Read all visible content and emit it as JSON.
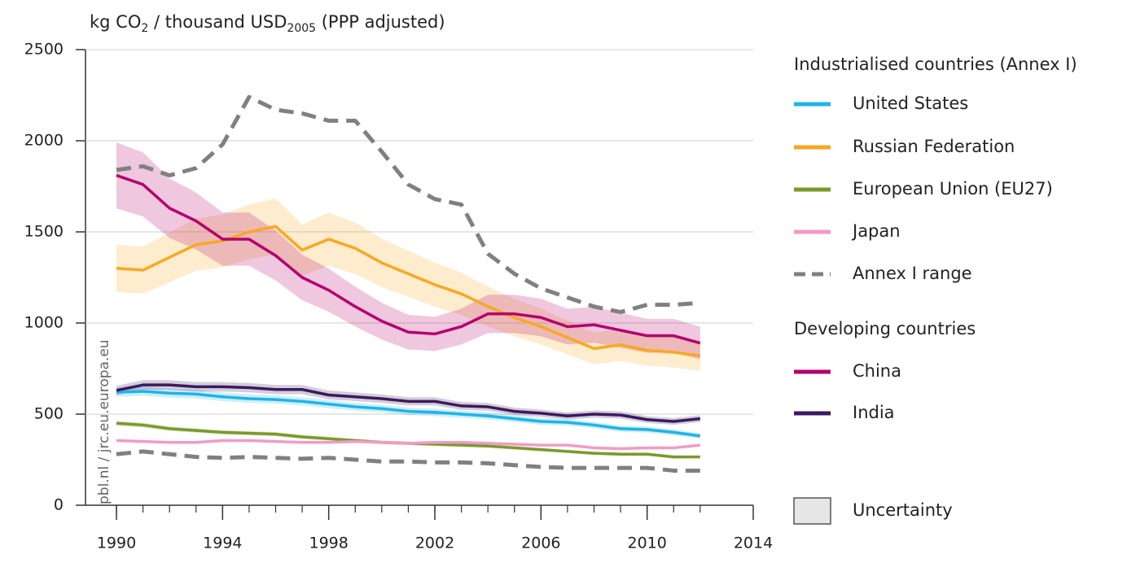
{
  "chart_data": {
    "type": "line",
    "y_label": [
      "kg CO",
      "2",
      " / thousand USD",
      "2005",
      " (PPP adjusted)"
    ],
    "watermark": "pbl.nl / jrc.eu.europa.eu",
    "x": [
      1990,
      1991,
      1992,
      1993,
      1994,
      1995,
      1996,
      1997,
      1998,
      1999,
      2000,
      2001,
      2002,
      2003,
      2004,
      2005,
      2006,
      2007,
      2008,
      2009,
      2010,
      2011,
      2012
    ],
    "xlim": [
      1990,
      2014
    ],
    "xticks": [
      1990,
      1994,
      1998,
      2002,
      2006,
      2010,
      2014
    ],
    "ylim": [
      0,
      2500
    ],
    "yticks": [
      0,
      500,
      1000,
      1500,
      2000,
      2500
    ],
    "grid": true,
    "uncertainty_label": "Uncertainty",
    "groups": [
      {
        "title": "Industrialised countries (Annex I)",
        "series": [
          {
            "name": "United States",
            "color": "#1eb4e8",
            "uncertainty": 4,
            "values": [
              620,
              625,
              615,
              610,
              595,
              585,
              580,
              570,
              555,
              540,
              530,
              515,
              510,
              500,
              490,
              475,
              460,
              455,
              440,
              420,
              415,
              400,
              380
            ]
          },
          {
            "name": "Russian Federation",
            "color": "#f8a822",
            "uncertainty": 10,
            "values": [
              1300,
              1290,
              1360,
              1430,
              1450,
              1500,
              1530,
              1400,
              1460,
              1410,
              1330,
              1270,
              1210,
              1160,
              1090,
              1030,
              980,
              920,
              860,
              880,
              850,
              840,
              820
            ]
          },
          {
            "name": "European Union (EU27)",
            "color": "#7a9a2a",
            "uncertainty": 3,
            "values": [
              450,
              440,
              420,
              410,
              400,
              395,
              390,
              375,
              365,
              355,
              345,
              340,
              335,
              330,
              325,
              315,
              305,
              295,
              285,
              280,
              280,
              265,
              265
            ]
          },
          {
            "name": "Japan",
            "color": "#f39ac6",
            "uncertainty": 2,
            "values": [
              355,
              350,
              345,
              345,
              355,
              355,
              350,
              345,
              345,
              350,
              345,
              340,
              345,
              345,
              340,
              335,
              330,
              330,
              315,
              310,
              315,
              315,
              330
            ]
          },
          {
            "name": "Annex I range",
            "color": "#808080",
            "dashed": true,
            "values": [
              1840,
              1860,
              1810,
              1850,
              1980,
              2240,
              2170,
              2150,
              2110,
              2110,
              1940,
              1760,
              1680,
              1650,
              1380,
              1270,
              1190,
              1140,
              1090,
              1060,
              1100,
              1100,
              1110
            ],
            "lower_values": [
              280,
              295,
              280,
              265,
              260,
              265,
              260,
              255,
              260,
              250,
              240,
              240,
              235,
              235,
              230,
              220,
              210,
              205,
              205,
              205,
              205,
              190,
              190
            ]
          }
        ]
      },
      {
        "title": "Developing countries",
        "series": [
          {
            "name": "China",
            "color": "#b5006f",
            "uncertainty": 10,
            "values": [
              1810,
              1760,
              1630,
              1560,
              1460,
              1460,
              1370,
              1250,
              1180,
              1090,
              1010,
              950,
              940,
              980,
              1050,
              1050,
              1030,
              980,
              990,
              960,
              930,
              930,
              890
            ]
          },
          {
            "name": "India",
            "color": "#3b1a5e",
            "uncertainty": 4,
            "values": [
              630,
              660,
              660,
              650,
              650,
              645,
              635,
              635,
              605,
              595,
              585,
              570,
              570,
              545,
              540,
              515,
              505,
              490,
              500,
              495,
              470,
              460,
              475
            ]
          }
        ]
      }
    ]
  }
}
